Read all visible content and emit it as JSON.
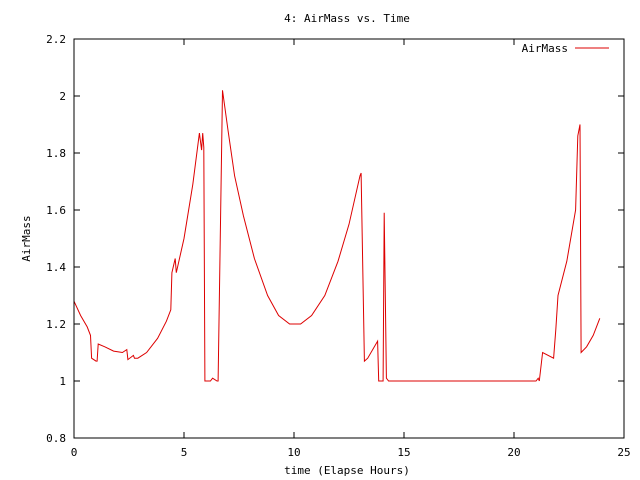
{
  "chart_data": {
    "type": "line",
    "title": "4: AirMass vs. Time",
    "xlabel": "time (Elapse Hours)",
    "ylabel": "AirMass",
    "xlim": [
      0,
      25
    ],
    "ylim": [
      0.8,
      2.2
    ],
    "xticks": [
      "0",
      "5",
      "10",
      "15",
      "20",
      "25"
    ],
    "yticks": [
      "0.8",
      "1",
      "1.2",
      "1.4",
      "1.6",
      "1.8",
      "2",
      "2.2"
    ],
    "grid": false,
    "legend_position": "top-right",
    "series": [
      {
        "name": "AirMass",
        "color": "#dd0000",
        "points": [
          [
            0,
            1.28
          ],
          [
            0.3,
            1.23
          ],
          [
            0.6,
            1.19
          ],
          [
            0.75,
            1.16
          ],
          [
            0.8,
            1.08
          ],
          [
            1.0,
            1.07
          ],
          [
            1.05,
            1.07
          ],
          [
            1.1,
            1.13
          ],
          [
            1.4,
            1.12
          ],
          [
            1.8,
            1.105
          ],
          [
            2.2,
            1.1
          ],
          [
            2.4,
            1.11
          ],
          [
            2.45,
            1.075
          ],
          [
            2.7,
            1.09
          ],
          [
            2.75,
            1.08
          ],
          [
            2.9,
            1.08
          ],
          [
            3.3,
            1.1
          ],
          [
            3.8,
            1.15
          ],
          [
            4.2,
            1.21
          ],
          [
            4.4,
            1.25
          ],
          [
            4.45,
            1.38
          ],
          [
            4.6,
            1.43
          ],
          [
            4.65,
            1.38
          ],
          [
            5.0,
            1.5
          ],
          [
            5.4,
            1.69
          ],
          [
            5.7,
            1.87
          ],
          [
            5.8,
            1.81
          ],
          [
            5.85,
            1.87
          ],
          [
            5.9,
            1.82
          ],
          [
            5.95,
            1.0
          ],
          [
            6.2,
            1.0
          ],
          [
            6.3,
            1.01
          ],
          [
            6.5,
            1.0
          ],
          [
            6.55,
            1.0
          ],
          [
            6.75,
            2.02
          ],
          [
            7.0,
            1.88
          ],
          [
            7.3,
            1.72
          ],
          [
            7.7,
            1.58
          ],
          [
            8.2,
            1.43
          ],
          [
            8.8,
            1.3
          ],
          [
            9.3,
            1.23
          ],
          [
            9.8,
            1.2
          ],
          [
            10.3,
            1.2
          ],
          [
            10.8,
            1.23
          ],
          [
            11.4,
            1.3
          ],
          [
            12.0,
            1.42
          ],
          [
            12.5,
            1.55
          ],
          [
            13.0,
            1.72
          ],
          [
            13.05,
            1.73
          ],
          [
            13.2,
            1.07
          ],
          [
            13.35,
            1.08
          ],
          [
            13.8,
            1.14
          ],
          [
            13.85,
            1.0
          ],
          [
            14.05,
            1.0
          ],
          [
            14.1,
            1.59
          ],
          [
            14.2,
            1.01
          ],
          [
            14.3,
            1.0
          ],
          [
            15.0,
            1.0
          ],
          [
            18.0,
            1.0
          ],
          [
            21.0,
            1.0
          ],
          [
            21.1,
            1.01
          ],
          [
            21.15,
            1.0
          ],
          [
            21.3,
            1.1
          ],
          [
            21.8,
            1.08
          ],
          [
            21.9,
            1.18
          ],
          [
            22.0,
            1.3
          ],
          [
            22.4,
            1.42
          ],
          [
            22.8,
            1.6
          ],
          [
            22.9,
            1.86
          ],
          [
            23.0,
            1.9
          ],
          [
            23.05,
            1.1
          ],
          [
            23.3,
            1.12
          ],
          [
            23.6,
            1.16
          ],
          [
            23.9,
            1.22
          ]
        ]
      }
    ]
  }
}
